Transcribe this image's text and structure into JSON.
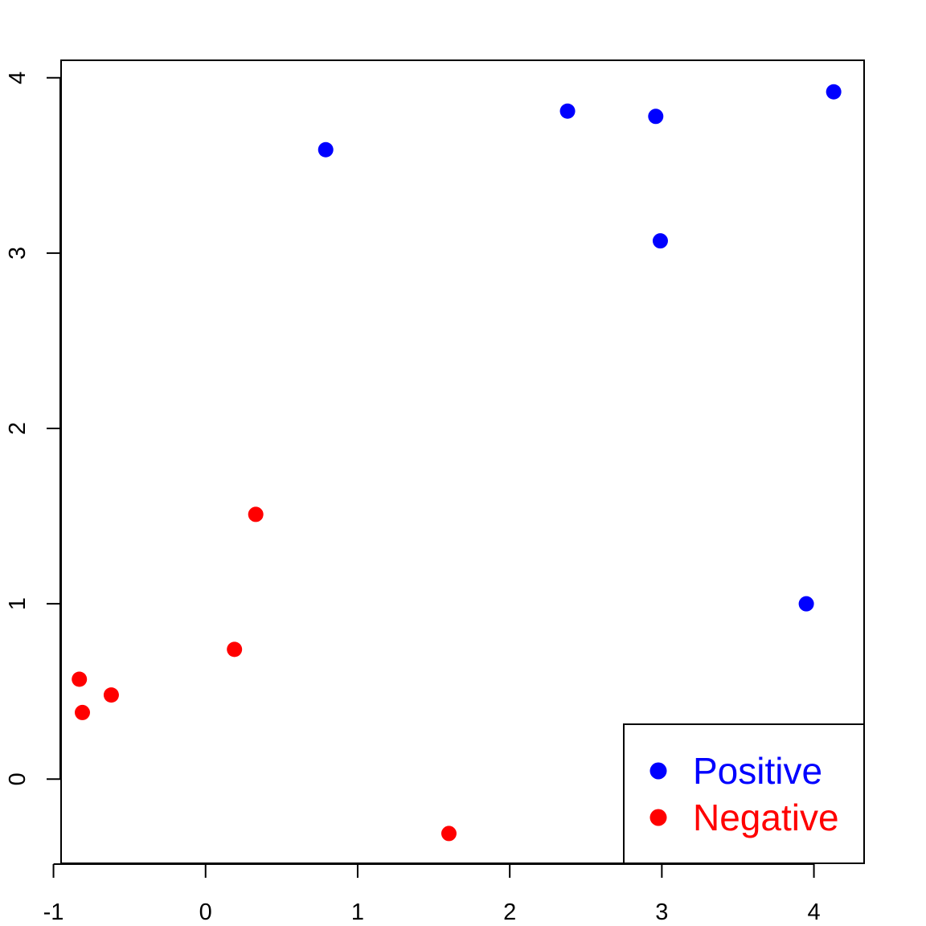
{
  "chart_data": {
    "type": "scatter",
    "title": "",
    "xlabel": "",
    "ylabel": "",
    "xlim": [
      -0.95,
      4.33
    ],
    "ylim": [
      -0.48,
      4.1
    ],
    "x_ticks": [
      -1,
      0,
      1,
      2,
      3,
      4
    ],
    "y_ticks": [
      0,
      1,
      2,
      3,
      4
    ],
    "x_tick_labels": [
      "-1",
      "0",
      "1",
      "2",
      "3",
      "4"
    ],
    "y_tick_labels": [
      "0",
      "1",
      "2",
      "3",
      "4"
    ],
    "grid": false,
    "legend": {
      "position": "bottom-right"
    },
    "series": [
      {
        "name": "Positive",
        "color": "#0000ff",
        "points": [
          {
            "x": 0.79,
            "y": 3.59
          },
          {
            "x": 2.38,
            "y": 3.81
          },
          {
            "x": 2.96,
            "y": 3.78
          },
          {
            "x": 4.13,
            "y": 3.92
          },
          {
            "x": 2.99,
            "y": 3.07
          },
          {
            "x": 3.95,
            "y": 1.0
          }
        ]
      },
      {
        "name": "Negative",
        "color": "#ff0000",
        "points": [
          {
            "x": 0.33,
            "y": 1.51
          },
          {
            "x": 0.19,
            "y": 0.74
          },
          {
            "x": -0.83,
            "y": 0.57
          },
          {
            "x": -0.62,
            "y": 0.48
          },
          {
            "x": -0.81,
            "y": 0.38
          },
          {
            "x": 1.6,
            "y": -0.31
          }
        ]
      }
    ]
  }
}
